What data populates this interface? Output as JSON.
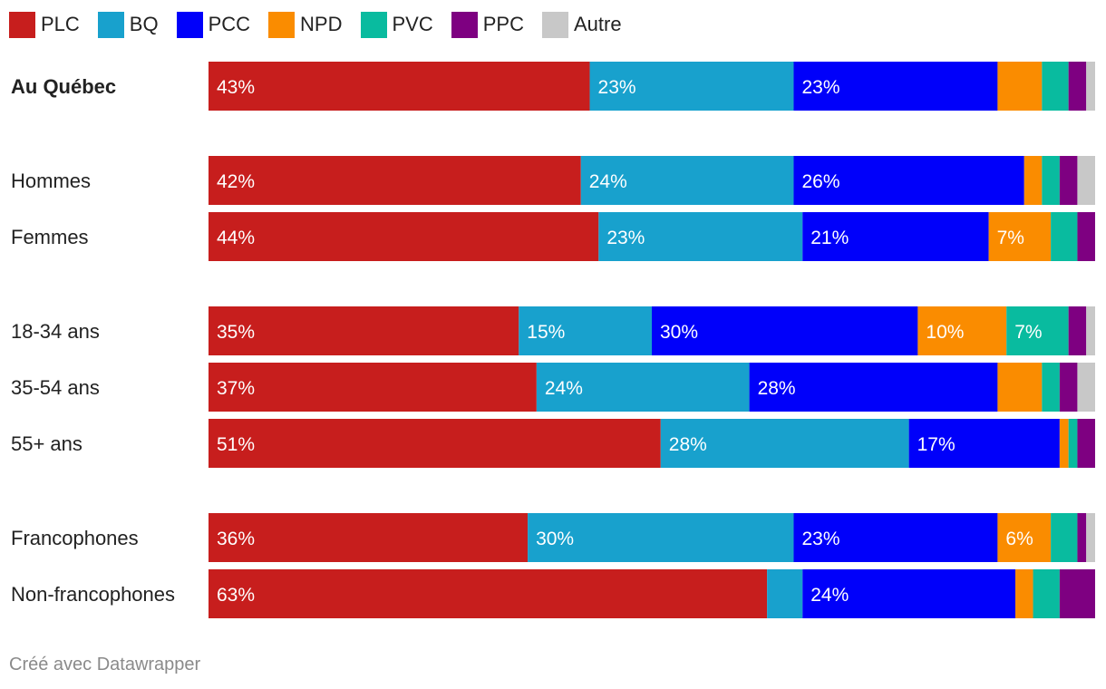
{
  "chart_data": {
    "type": "bar",
    "orientation": "horizontal",
    "stacked": true,
    "percent": true,
    "xlim": [
      0,
      100
    ],
    "categories": [
      "Au Québec",
      "Hommes",
      "Femmes",
      "18-34 ans",
      "35-54 ans",
      "55+ ans",
      "Francophones",
      "Non-francophones"
    ],
    "bold_categories": [
      "Au Québec"
    ],
    "series": [
      {
        "name": "PLC",
        "color": "#c71e1d",
        "values": [
          43,
          42,
          44,
          35,
          37,
          51,
          36,
          63
        ]
      },
      {
        "name": "BQ",
        "color": "#18a1cd",
        "values": [
          23,
          24,
          23,
          15,
          24,
          28,
          30,
          4
        ]
      },
      {
        "name": "PCC",
        "color": "#0000fa",
        "values": [
          23,
          26,
          21,
          30,
          28,
          17,
          23,
          24
        ]
      },
      {
        "name": "NPD",
        "color": "#fa8c00",
        "values": [
          5,
          2,
          7,
          10,
          5,
          1,
          6,
          2
        ]
      },
      {
        "name": "PVC",
        "color": "#09bb9f",
        "values": [
          3,
          2,
          3,
          7,
          2,
          1,
          3,
          3
        ]
      },
      {
        "name": "PPC",
        "color": "#7e0081",
        "values": [
          2,
          2,
          2,
          2,
          2,
          2,
          1,
          4
        ]
      },
      {
        "name": "Autre",
        "color": "#c8c8c8",
        "values": [
          1,
          2,
          0,
          1,
          2,
          0,
          1,
          0
        ]
      }
    ],
    "data_labels": [
      [
        "43%",
        "23%",
        "23%",
        "",
        "",
        "",
        ""
      ],
      [
        "42%",
        "24%",
        "26%",
        "",
        "",
        "",
        ""
      ],
      [
        "44%",
        "23%",
        "21%",
        "7%",
        "",
        "",
        ""
      ],
      [
        "35%",
        "15%",
        "30%",
        "10%",
        "7%",
        "",
        ""
      ],
      [
        "37%",
        "24%",
        "28%",
        "",
        "",
        "",
        ""
      ],
      [
        "51%",
        "28%",
        "17%",
        "",
        "",
        "",
        ""
      ],
      [
        "36%",
        "30%",
        "23%",
        "6%",
        "",
        "",
        ""
      ],
      [
        "63%",
        "",
        "24%",
        "",
        "",
        "",
        ""
      ]
    ],
    "legend_position": "top-left",
    "grid": false
  },
  "footer": {
    "text": "Créé avec Datawrapper"
  }
}
